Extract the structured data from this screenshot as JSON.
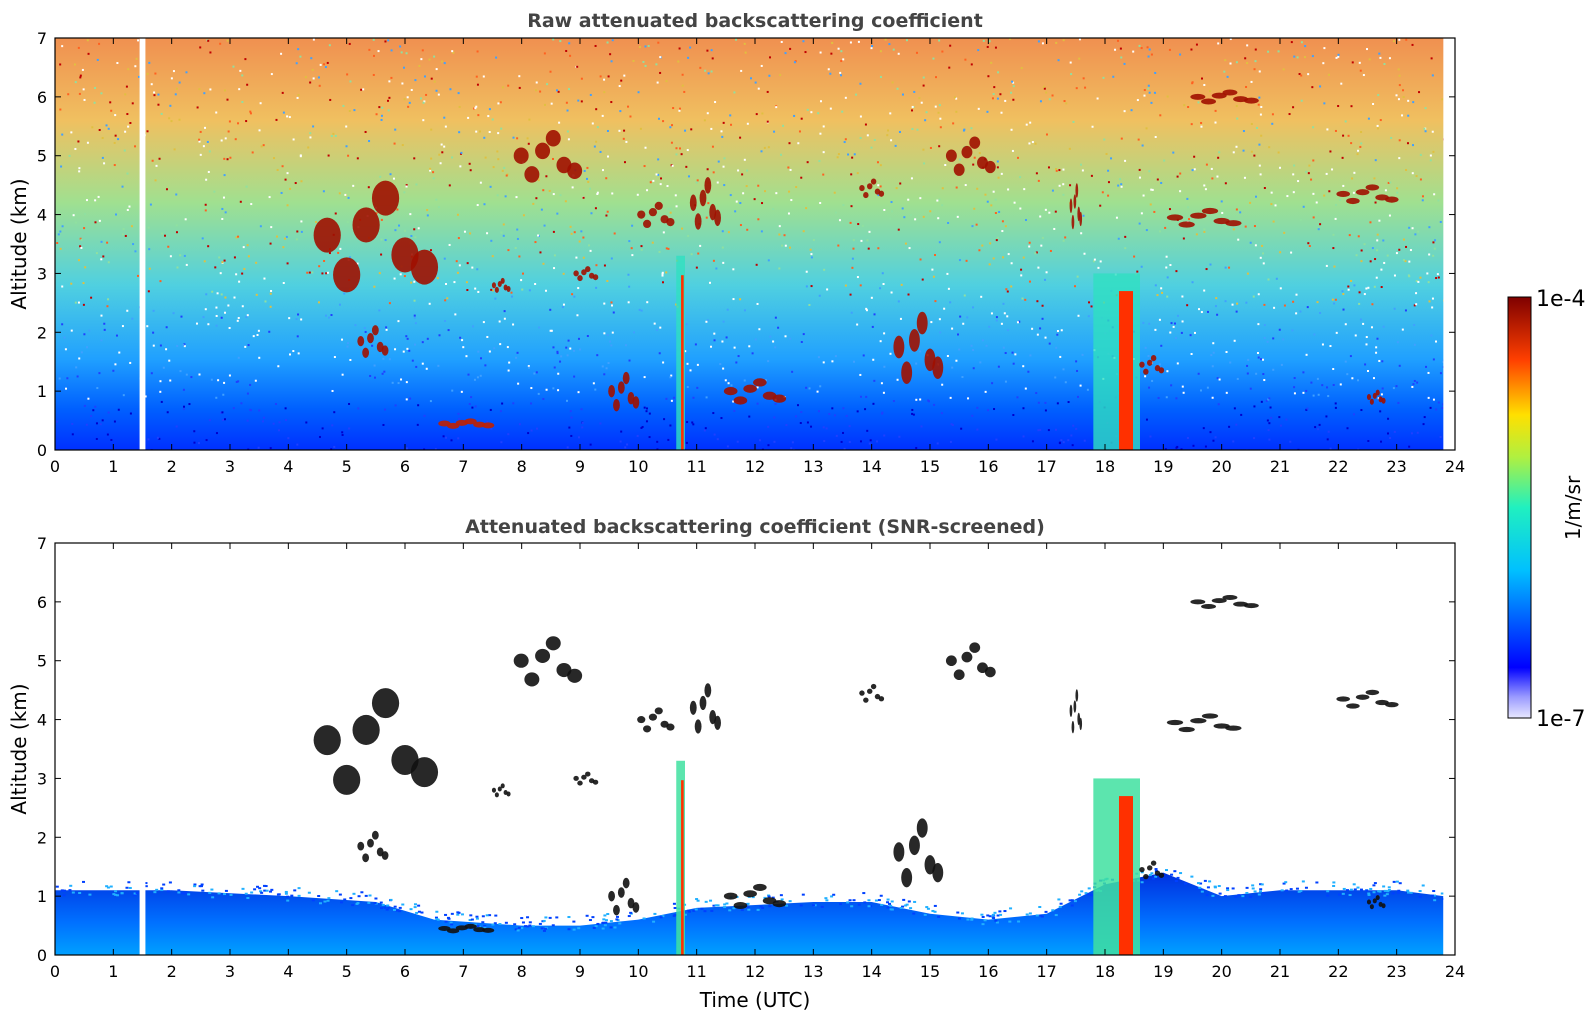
{
  "chart_data": [
    {
      "type": "heatmap",
      "title": "Raw attenuated backscattering coefficient",
      "xlabel": "",
      "ylabel": "Altitude (km)",
      "xlim": [
        0,
        24
      ],
      "ylim": [
        0,
        7
      ],
      "x_ticks": [
        "0",
        "1",
        "2",
        "3",
        "4",
        "5",
        "6",
        "7",
        "8",
        "9",
        "10",
        "11",
        "12",
        "13",
        "14",
        "15",
        "16",
        "17",
        "18",
        "19",
        "20",
        "21",
        "22",
        "23",
        "24"
      ],
      "y_ticks": [
        "0",
        "1",
        "2",
        "3",
        "4",
        "5",
        "6",
        "7"
      ],
      "data_gaps_utc": [
        [
          1.45,
          1.55
        ],
        [
          23.8,
          24.0
        ]
      ],
      "features": [
        {
          "kind": "cloud",
          "x": [
            4.5,
            6.5
          ],
          "y": [
            2.8,
            4.5
          ]
        },
        {
          "kind": "cloud",
          "x": [
            5.2,
            5.7
          ],
          "y": [
            1.6,
            2.1
          ]
        },
        {
          "kind": "aerosol_layer",
          "x": [
            6.6,
            7.5
          ],
          "y": [
            0.4,
            0.5
          ]
        },
        {
          "kind": "cloud",
          "x": [
            7.5,
            7.8
          ],
          "y": [
            2.7,
            2.9
          ]
        },
        {
          "kind": "cloud",
          "x": [
            7.9,
            9.0
          ],
          "y": [
            4.6,
            5.4
          ]
        },
        {
          "kind": "cloud",
          "x": [
            8.9,
            9.3
          ],
          "y": [
            2.9,
            3.1
          ]
        },
        {
          "kind": "cloud",
          "x": [
            9.5,
            10.0
          ],
          "y": [
            0.7,
            1.3
          ]
        },
        {
          "kind": "cloud",
          "x": [
            10.0,
            10.6
          ],
          "y": [
            3.8,
            4.2
          ]
        },
        {
          "kind": "precipitation",
          "x": [
            10.65,
            10.8
          ],
          "y": [
            0.0,
            3.3
          ]
        },
        {
          "kind": "cloud",
          "x": [
            10.9,
            11.4
          ],
          "y": [
            3.8,
            4.6
          ]
        },
        {
          "kind": "cloud",
          "x": [
            11.5,
            12.5
          ],
          "y": [
            0.8,
            1.2
          ]
        },
        {
          "kind": "cloud",
          "x": [
            13.8,
            14.2
          ],
          "y": [
            4.3,
            4.6
          ]
        },
        {
          "kind": "cloud",
          "x": [
            14.4,
            15.2
          ],
          "y": [
            1.2,
            2.3
          ]
        },
        {
          "kind": "cloud",
          "x": [
            15.3,
            16.1
          ],
          "y": [
            4.7,
            5.3
          ]
        },
        {
          "kind": "cloud",
          "x": [
            17.4,
            17.6
          ],
          "y": [
            3.8,
            4.5
          ]
        },
        {
          "kind": "precipitation",
          "x": [
            17.8,
            18.6
          ],
          "y": [
            0.0,
            3.0
          ]
        },
        {
          "kind": "cloud",
          "x": [
            18.6,
            19.0
          ],
          "y": [
            1.3,
            1.6
          ]
        },
        {
          "kind": "cloud",
          "x": [
            19.1,
            20.3
          ],
          "y": [
            3.8,
            4.1
          ]
        },
        {
          "kind": "cloud",
          "x": [
            19.5,
            20.6
          ],
          "y": [
            5.9,
            6.1
          ]
        },
        {
          "kind": "cloud",
          "x": [
            22.0,
            23.0
          ],
          "y": [
            4.2,
            4.5
          ]
        },
        {
          "kind": "cloud",
          "x": [
            22.5,
            22.8
          ],
          "y": [
            0.8,
            1.0
          ]
        }
      ]
    },
    {
      "type": "heatmap",
      "title": "Attenuated backscattering coefficient (SNR-screened)",
      "xlabel": "Time (UTC)",
      "ylabel": "Altitude (km)",
      "xlim": [
        0,
        24
      ],
      "ylim": [
        0,
        7
      ],
      "x_ticks": [
        "0",
        "1",
        "2",
        "3",
        "4",
        "5",
        "6",
        "7",
        "8",
        "9",
        "10",
        "11",
        "12",
        "13",
        "14",
        "15",
        "16",
        "17",
        "18",
        "19",
        "20",
        "21",
        "22",
        "23",
        "24"
      ],
      "y_ticks": [
        "0",
        "1",
        "2",
        "3",
        "4",
        "5",
        "6",
        "7"
      ],
      "boundary_layer_top_km": [
        [
          0,
          1.1
        ],
        [
          2,
          1.1
        ],
        [
          4,
          1.0
        ],
        [
          5.5,
          0.9
        ],
        [
          6.5,
          0.6
        ],
        [
          8,
          0.5
        ],
        [
          9,
          0.5
        ],
        [
          10,
          0.6
        ],
        [
          11,
          0.8
        ],
        [
          13,
          0.9
        ],
        [
          14,
          0.9
        ],
        [
          15,
          0.7
        ],
        [
          16,
          0.6
        ],
        [
          17,
          0.7
        ],
        [
          18,
          1.2
        ],
        [
          19,
          1.4
        ],
        [
          20,
          1.0
        ],
        [
          21,
          1.1
        ],
        [
          22,
          1.1
        ],
        [
          23,
          1.1
        ],
        [
          23.8,
          1.0
        ]
      ]
    }
  ],
  "colorbar": {
    "label": "1/m/sr",
    "max_label": "1e-4",
    "min_label": "1e-7",
    "scale": "log",
    "range": [
      1e-07,
      0.0001
    ],
    "colormap": "jet"
  }
}
